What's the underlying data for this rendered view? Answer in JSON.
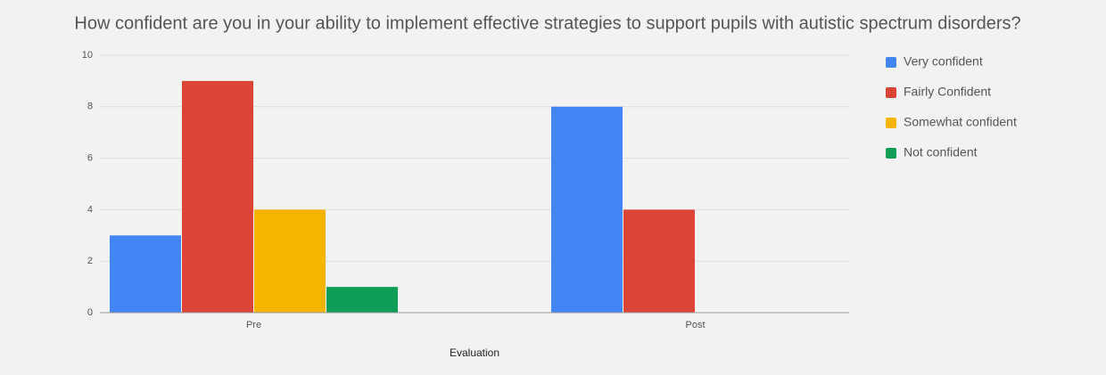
{
  "chart_data": {
    "type": "bar",
    "title": "How confident are you in your ability to implement effective strategies to support pupils with autistic spectrum disorders?",
    "x_label": "Evaluation",
    "categories": [
      "Pre",
      "Post"
    ],
    "series": [
      {
        "name": "Very confident",
        "color": "#4285f4",
        "values": [
          3,
          8
        ]
      },
      {
        "name": "Fairly Confident",
        "color": "#db4437",
        "values": [
          9,
          4
        ]
      },
      {
        "name": "Somewhat confident",
        "color": "#f4b400",
        "values": [
          4,
          0
        ]
      },
      {
        "name": "Not confident",
        "color": "#0f9d58",
        "values": [
          1,
          0
        ]
      }
    ],
    "ylim": [
      0,
      10
    ],
    "yticks": [
      0,
      2,
      4,
      6,
      8,
      10
    ],
    "grid": true,
    "legend": "right"
  }
}
